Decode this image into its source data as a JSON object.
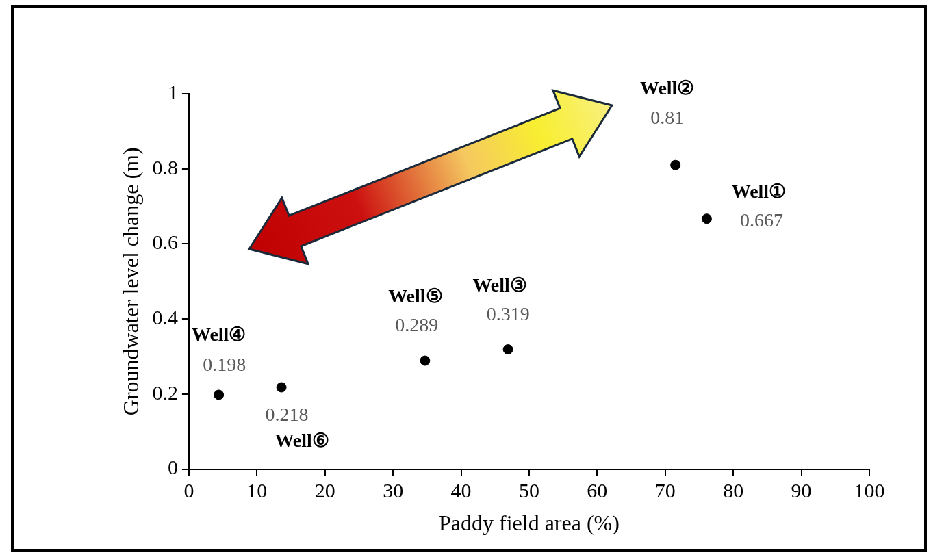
{
  "chart_data": {
    "type": "scatter",
    "xlabel": "Paddy field area (%)",
    "ylabel": "Groundwater level change (m)",
    "x": [
      4.4,
      13.6,
      34.7,
      46.9,
      71.5,
      76.1
    ],
    "values": [
      0.198,
      0.218,
      0.289,
      0.319,
      0.81,
      0.667
    ],
    "value_labels": [
      "0.198",
      "0.218",
      "0.289",
      "0.319",
      "0.81",
      "0.667"
    ],
    "color": "#000000",
    "marker": "circle",
    "xlim": [
      0,
      100
    ],
    "xticks": [
      0,
      10,
      20,
      30,
      40,
      50,
      60,
      70,
      80,
      90,
      100
    ],
    "ylim": [
      0,
      1
    ],
    "yticks": [
      0,
      0.2,
      0.4,
      0.6,
      0.8,
      1
    ],
    "annotations": [
      "Well④",
      "Well⑥",
      "Well⑤",
      "Well③",
      "Well②",
      "Well①"
    ],
    "grid": false,
    "legend": false
  }
}
